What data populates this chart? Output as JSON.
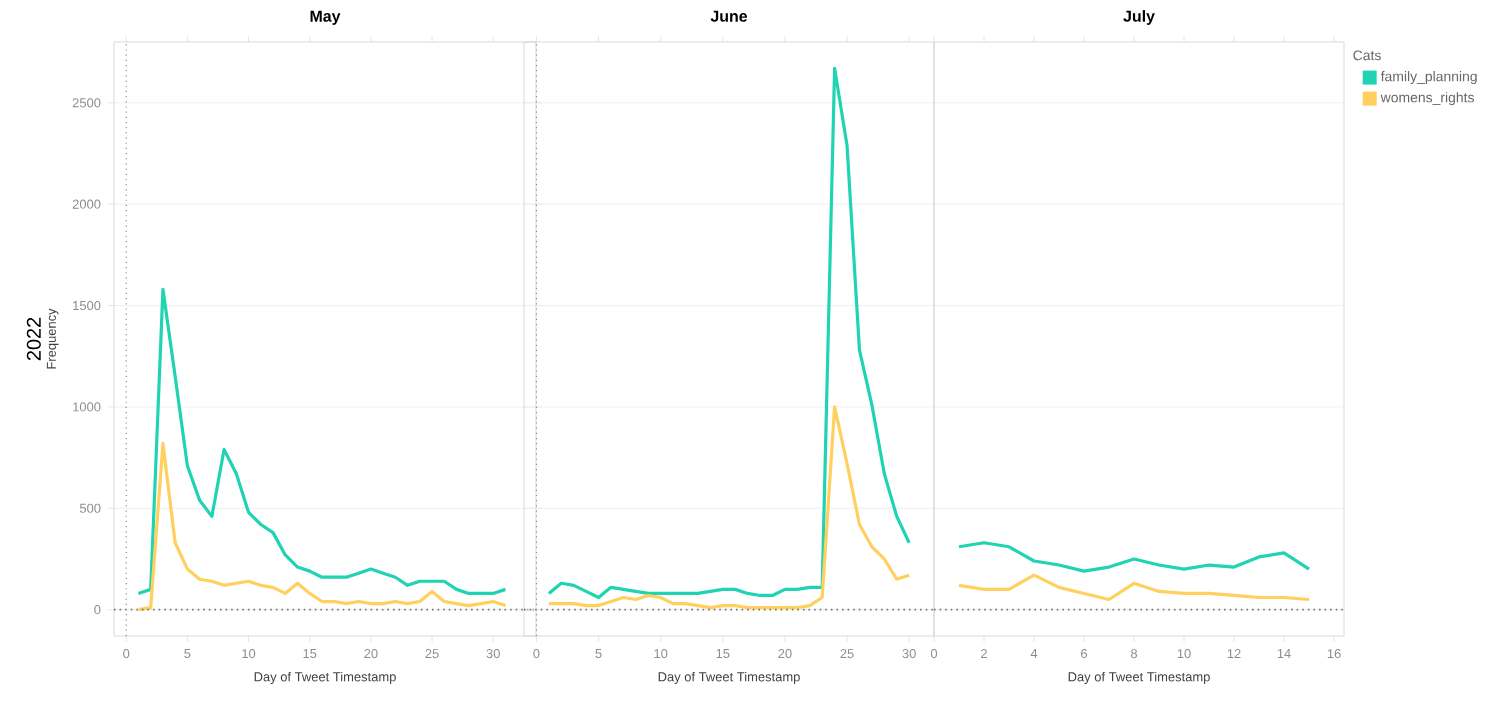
{
  "chart_data": [
    {
      "type": "line",
      "title": "May",
      "xlabel": "Day of Tweet Timestamp",
      "ylabel": "Frequency",
      "annotations": [
        "2022"
      ],
      "x": [
        1,
        2,
        3,
        4,
        5,
        6,
        7,
        8,
        9,
        10,
        11,
        12,
        13,
        14,
        15,
        16,
        17,
        18,
        19,
        20,
        21,
        22,
        23,
        24,
        25,
        26,
        27,
        28,
        29,
        30,
        31
      ],
      "series": [
        {
          "color": "#1fd3b3",
          "values": [
            80,
            100,
            1580,
            1150,
            710,
            540,
            460,
            790,
            670,
            480,
            420,
            380,
            270,
            210,
            190,
            160,
            160,
            160,
            180,
            200,
            180,
            160,
            120,
            140,
            140,
            140,
            100,
            80,
            80,
            80,
            100
          ]
        },
        {
          "color": "#ffd05e",
          "values": [
            0,
            10,
            820,
            330,
            200,
            150,
            140,
            120,
            130,
            140,
            120,
            110,
            80,
            130,
            80,
            40,
            40,
            30,
            40,
            30,
            30,
            40,
            30,
            40,
            90,
            40,
            30,
            20,
            30,
            40,
            20
          ]
        }
      ],
      "xlim": [
        -1,
        33.5
      ],
      "xticks": [
        0,
        5,
        10,
        15,
        20,
        25,
        30
      ],
      "ylim": [
        -130,
        2800
      ],
      "yticks": [
        0,
        500,
        1000,
        1500,
        2000,
        2500
      ],
      "grid": "y",
      "ref_lines": [
        {
          "axis": "y",
          "value": 0,
          "line_style": "dotted"
        },
        {
          "axis": "x",
          "value": 0,
          "line_style": "dotted"
        }
      ],
      "legend": false
    },
    {
      "type": "line",
      "title": "June",
      "xlabel": "Day of Tweet Timestamp",
      "x": [
        1,
        2,
        3,
        4,
        5,
        6,
        7,
        8,
        9,
        10,
        11,
        12,
        13,
        14,
        15,
        16,
        17,
        18,
        19,
        20,
        21,
        22,
        23,
        24,
        25,
        26,
        27,
        28,
        29,
        30
      ],
      "series": [
        {
          "color": "#1fd3b3",
          "values": [
            80,
            130,
            120,
            90,
            60,
            110,
            100,
            90,
            80,
            80,
            80,
            80,
            80,
            90,
            100,
            100,
            80,
            70,
            70,
            100,
            100,
            110,
            110,
            2670,
            2290,
            1280,
            1010,
            670,
            460,
            330
          ]
        },
        {
          "color": "#ffd05e",
          "values": [
            30,
            30,
            30,
            20,
            20,
            40,
            60,
            50,
            70,
            60,
            30,
            30,
            20,
            10,
            20,
            20,
            10,
            10,
            10,
            10,
            10,
            20,
            60,
            1000,
            720,
            420,
            310,
            250,
            150,
            170
          ]
        }
      ],
      "xlim": [
        -1,
        32
      ],
      "xticks": [
        0,
        5,
        10,
        15,
        20,
        25,
        30
      ],
      "ylim": [
        -130,
        2800
      ],
      "yticks": [
        0,
        500,
        1000,
        1500,
        2000,
        2500
      ],
      "grid": "y",
      "tick_labels": "x",
      "ref_lines": [
        {
          "axis": "y",
          "value": 0,
          "line_style": "dotted"
        },
        {
          "axis": "x",
          "value": 0,
          "line_style": "dotted"
        }
      ],
      "legend": false
    },
    {
      "type": "line",
      "title": "July",
      "xlabel": "Day of Tweet Timestamp",
      "legend_title": "Cats",
      "x": [
        1,
        2,
        3,
        4,
        5,
        6,
        7,
        8,
        9,
        10,
        11,
        12,
        13,
        14,
        15
      ],
      "series": [
        {
          "name": "family_planning",
          "color": "#1fd3b3",
          "values": [
            310,
            330,
            310,
            240,
            220,
            190,
            210,
            250,
            220,
            200,
            220,
            210,
            260,
            280,
            200
          ]
        },
        {
          "name": "womens_rights",
          "color": "#ffd05e",
          "values": [
            120,
            100,
            100,
            170,
            110,
            80,
            50,
            130,
            90,
            80,
            80,
            70,
            60,
            60,
            50
          ]
        }
      ],
      "xlim": [
        0,
        16.4
      ],
      "xticks": [
        0,
        2,
        4,
        6,
        8,
        10,
        12,
        14,
        16
      ],
      "ylim": [
        -130,
        2800
      ],
      "yticks": [
        0,
        500,
        1000,
        1500,
        2000,
        2500
      ],
      "grid": "y",
      "tick_labels": "x",
      "ref_lines": [
        {
          "axis": "y",
          "value": 0,
          "line_style": "dotted"
        }
      ],
      "legend": "right"
    }
  ]
}
